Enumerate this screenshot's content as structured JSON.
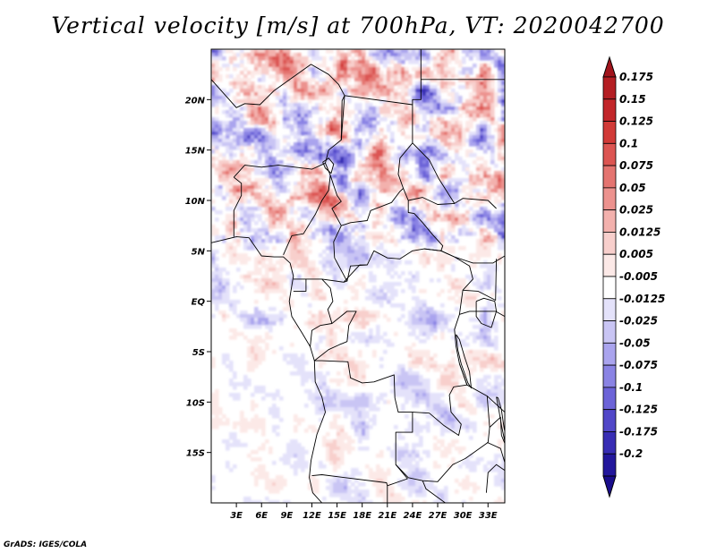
{
  "title": "Vertical velocity [m/s] at 700hPa, VT: 2020042700",
  "credit": "GrADS: IGES/COLA",
  "map": {
    "lon_range": [
      0,
      35
    ],
    "lat_range": [
      -20,
      25
    ],
    "lat_ticks": [
      {
        "value": 20,
        "label": "20N"
      },
      {
        "value": 15,
        "label": "15N"
      },
      {
        "value": 10,
        "label": "10N"
      },
      {
        "value": 5,
        "label": "5N"
      },
      {
        "value": 0,
        "label": "EQ"
      },
      {
        "value": -5,
        "label": "5S"
      },
      {
        "value": -10,
        "label": "10S"
      },
      {
        "value": -15,
        "label": "15S"
      }
    ],
    "lon_ticks": [
      {
        "value": 3,
        "label": "3E"
      },
      {
        "value": 6,
        "label": "6E"
      },
      {
        "value": 9,
        "label": "9E"
      },
      {
        "value": 12,
        "label": "12E"
      },
      {
        "value": 15,
        "label": "15E"
      },
      {
        "value": 18,
        "label": "18E"
      },
      {
        "value": 21,
        "label": "21E"
      },
      {
        "value": 24,
        "label": "24E"
      },
      {
        "value": 27,
        "label": "27E"
      },
      {
        "value": 30,
        "label": "30E"
      },
      {
        "value": 33,
        "label": "33E"
      }
    ]
  },
  "colorbar": {
    "levels": [
      {
        "label": "0.175",
        "color": "#b41e23"
      },
      {
        "label": "0.15",
        "color": "#c2262a"
      },
      {
        "label": "0.125",
        "color": "#d13a37"
      },
      {
        "label": "0.1",
        "color": "#dc5552"
      },
      {
        "label": "0.075",
        "color": "#e47470"
      },
      {
        "label": "0.05",
        "color": "#ec928e"
      },
      {
        "label": "0.025",
        "color": "#f3b1ad"
      },
      {
        "label": "0.0125",
        "color": "#f8cfcc"
      },
      {
        "label": "0.005",
        "color": "#fce9e7"
      },
      {
        "label": "-0.005",
        "color": "#ffffff"
      },
      {
        "label": "-0.0125",
        "color": "#e4e2fa"
      },
      {
        "label": "-0.025",
        "color": "#c9c5f4"
      },
      {
        "label": "-0.05",
        "color": "#aaa4ee"
      },
      {
        "label": "-0.075",
        "color": "#8a83e4"
      },
      {
        "label": "-0.1",
        "color": "#6c63d8"
      },
      {
        "label": "-0.125",
        "color": "#5147c8"
      },
      {
        "label": "-0.175",
        "color": "#382db4"
      },
      {
        "label": "-0.2",
        "color": "#23179c"
      }
    ],
    "top_color": "#a1141c",
    "bottom_color": "#1a0d8c"
  }
}
